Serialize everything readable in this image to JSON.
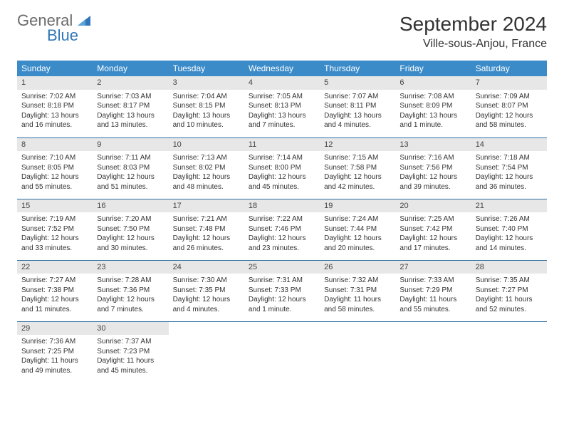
{
  "logo": {
    "general": "General",
    "blue": "Blue"
  },
  "title": "September 2024",
  "location": "Ville-sous-Anjou, France",
  "colors": {
    "header_bg": "#3b8bc9",
    "header_text": "#ffffff",
    "daynum_bg": "#e7e7e7",
    "row_border": "#2f6ea3",
    "body_text": "#333333",
    "logo_gray": "#6b6b6b",
    "logo_blue": "#2f77b8"
  },
  "day_headers": [
    "Sunday",
    "Monday",
    "Tuesday",
    "Wednesday",
    "Thursday",
    "Friday",
    "Saturday"
  ],
  "weeks": [
    [
      {
        "n": "1",
        "sunrise": "Sunrise: 7:02 AM",
        "sunset": "Sunset: 8:18 PM",
        "daylight": "Daylight: 13 hours and 16 minutes."
      },
      {
        "n": "2",
        "sunrise": "Sunrise: 7:03 AM",
        "sunset": "Sunset: 8:17 PM",
        "daylight": "Daylight: 13 hours and 13 minutes."
      },
      {
        "n": "3",
        "sunrise": "Sunrise: 7:04 AM",
        "sunset": "Sunset: 8:15 PM",
        "daylight": "Daylight: 13 hours and 10 minutes."
      },
      {
        "n": "4",
        "sunrise": "Sunrise: 7:05 AM",
        "sunset": "Sunset: 8:13 PM",
        "daylight": "Daylight: 13 hours and 7 minutes."
      },
      {
        "n": "5",
        "sunrise": "Sunrise: 7:07 AM",
        "sunset": "Sunset: 8:11 PM",
        "daylight": "Daylight: 13 hours and 4 minutes."
      },
      {
        "n": "6",
        "sunrise": "Sunrise: 7:08 AM",
        "sunset": "Sunset: 8:09 PM",
        "daylight": "Daylight: 13 hours and 1 minute."
      },
      {
        "n": "7",
        "sunrise": "Sunrise: 7:09 AM",
        "sunset": "Sunset: 8:07 PM",
        "daylight": "Daylight: 12 hours and 58 minutes."
      }
    ],
    [
      {
        "n": "8",
        "sunrise": "Sunrise: 7:10 AM",
        "sunset": "Sunset: 8:05 PM",
        "daylight": "Daylight: 12 hours and 55 minutes."
      },
      {
        "n": "9",
        "sunrise": "Sunrise: 7:11 AM",
        "sunset": "Sunset: 8:03 PM",
        "daylight": "Daylight: 12 hours and 51 minutes."
      },
      {
        "n": "10",
        "sunrise": "Sunrise: 7:13 AM",
        "sunset": "Sunset: 8:02 PM",
        "daylight": "Daylight: 12 hours and 48 minutes."
      },
      {
        "n": "11",
        "sunrise": "Sunrise: 7:14 AM",
        "sunset": "Sunset: 8:00 PM",
        "daylight": "Daylight: 12 hours and 45 minutes."
      },
      {
        "n": "12",
        "sunrise": "Sunrise: 7:15 AM",
        "sunset": "Sunset: 7:58 PM",
        "daylight": "Daylight: 12 hours and 42 minutes."
      },
      {
        "n": "13",
        "sunrise": "Sunrise: 7:16 AM",
        "sunset": "Sunset: 7:56 PM",
        "daylight": "Daylight: 12 hours and 39 minutes."
      },
      {
        "n": "14",
        "sunrise": "Sunrise: 7:18 AM",
        "sunset": "Sunset: 7:54 PM",
        "daylight": "Daylight: 12 hours and 36 minutes."
      }
    ],
    [
      {
        "n": "15",
        "sunrise": "Sunrise: 7:19 AM",
        "sunset": "Sunset: 7:52 PM",
        "daylight": "Daylight: 12 hours and 33 minutes."
      },
      {
        "n": "16",
        "sunrise": "Sunrise: 7:20 AM",
        "sunset": "Sunset: 7:50 PM",
        "daylight": "Daylight: 12 hours and 30 minutes."
      },
      {
        "n": "17",
        "sunrise": "Sunrise: 7:21 AM",
        "sunset": "Sunset: 7:48 PM",
        "daylight": "Daylight: 12 hours and 26 minutes."
      },
      {
        "n": "18",
        "sunrise": "Sunrise: 7:22 AM",
        "sunset": "Sunset: 7:46 PM",
        "daylight": "Daylight: 12 hours and 23 minutes."
      },
      {
        "n": "19",
        "sunrise": "Sunrise: 7:24 AM",
        "sunset": "Sunset: 7:44 PM",
        "daylight": "Daylight: 12 hours and 20 minutes."
      },
      {
        "n": "20",
        "sunrise": "Sunrise: 7:25 AM",
        "sunset": "Sunset: 7:42 PM",
        "daylight": "Daylight: 12 hours and 17 minutes."
      },
      {
        "n": "21",
        "sunrise": "Sunrise: 7:26 AM",
        "sunset": "Sunset: 7:40 PM",
        "daylight": "Daylight: 12 hours and 14 minutes."
      }
    ],
    [
      {
        "n": "22",
        "sunrise": "Sunrise: 7:27 AM",
        "sunset": "Sunset: 7:38 PM",
        "daylight": "Daylight: 12 hours and 11 minutes."
      },
      {
        "n": "23",
        "sunrise": "Sunrise: 7:28 AM",
        "sunset": "Sunset: 7:36 PM",
        "daylight": "Daylight: 12 hours and 7 minutes."
      },
      {
        "n": "24",
        "sunrise": "Sunrise: 7:30 AM",
        "sunset": "Sunset: 7:35 PM",
        "daylight": "Daylight: 12 hours and 4 minutes."
      },
      {
        "n": "25",
        "sunrise": "Sunrise: 7:31 AM",
        "sunset": "Sunset: 7:33 PM",
        "daylight": "Daylight: 12 hours and 1 minute."
      },
      {
        "n": "26",
        "sunrise": "Sunrise: 7:32 AM",
        "sunset": "Sunset: 7:31 PM",
        "daylight": "Daylight: 11 hours and 58 minutes."
      },
      {
        "n": "27",
        "sunrise": "Sunrise: 7:33 AM",
        "sunset": "Sunset: 7:29 PM",
        "daylight": "Daylight: 11 hours and 55 minutes."
      },
      {
        "n": "28",
        "sunrise": "Sunrise: 7:35 AM",
        "sunset": "Sunset: 7:27 PM",
        "daylight": "Daylight: 11 hours and 52 minutes."
      }
    ],
    [
      {
        "n": "29",
        "sunrise": "Sunrise: 7:36 AM",
        "sunset": "Sunset: 7:25 PM",
        "daylight": "Daylight: 11 hours and 49 minutes."
      },
      {
        "n": "30",
        "sunrise": "Sunrise: 7:37 AM",
        "sunset": "Sunset: 7:23 PM",
        "daylight": "Daylight: 11 hours and 45 minutes."
      },
      null,
      null,
      null,
      null,
      null
    ]
  ]
}
